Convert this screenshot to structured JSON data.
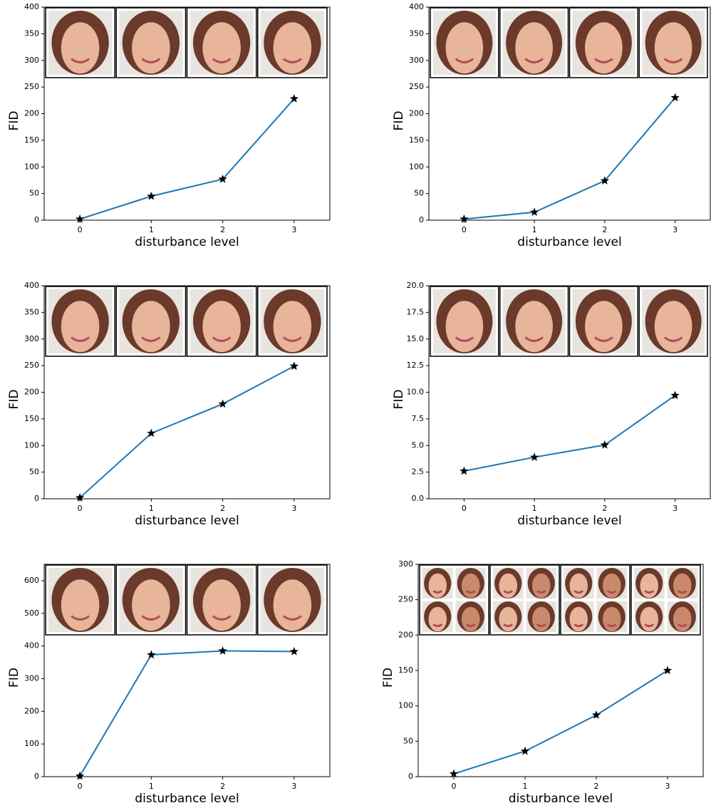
{
  "chart_data": [
    {
      "type": "line",
      "x": [
        0,
        1,
        2,
        3
      ],
      "values": [
        2,
        45,
        77,
        228
      ],
      "color": "#1f77b4",
      "marker": "star",
      "xlim": [
        -0.5,
        3.5
      ],
      "xticks": [
        0,
        1,
        2,
        3
      ],
      "ylim": [
        0,
        400
      ],
      "yticks": [
        0,
        50,
        100,
        150,
        200,
        250,
        300,
        350,
        400
      ],
      "xlabel": "disturbance level",
      "ylabel": "FID"
    },
    {
      "type": "line",
      "x": [
        0,
        1,
        2,
        3
      ],
      "values": [
        2,
        15,
        74,
        230
      ],
      "color": "#1f77b4",
      "marker": "star",
      "xlim": [
        -0.5,
        3.5
      ],
      "xticks": [
        0,
        1,
        2,
        3
      ],
      "ylim": [
        0,
        400
      ],
      "yticks": [
        0,
        50,
        100,
        150,
        200,
        250,
        300,
        350,
        400
      ],
      "xlabel": "disturbance level",
      "ylabel": "FID"
    },
    {
      "type": "line",
      "x": [
        0,
        1,
        2,
        3
      ],
      "values": [
        2,
        123,
        178,
        249
      ],
      "color": "#1f77b4",
      "marker": "star",
      "xlim": [
        -0.5,
        3.5
      ],
      "xticks": [
        0,
        1,
        2,
        3
      ],
      "ylim": [
        0,
        400
      ],
      "yticks": [
        0,
        50,
        100,
        150,
        200,
        250,
        300,
        350,
        400
      ],
      "xlabel": "disturbance level",
      "ylabel": "FID"
    },
    {
      "type": "line",
      "x": [
        0,
        1,
        2,
        3
      ],
      "values": [
        2.6,
        3.9,
        5.05,
        9.7
      ],
      "color": "#1f77b4",
      "marker": "star",
      "xlim": [
        -0.5,
        3.5
      ],
      "xticks": [
        0,
        1,
        2,
        3
      ],
      "ylim": [
        0,
        20
      ],
      "yticks": [
        {
          "value": 0,
          "label": "0.0"
        },
        2.5,
        {
          "value": 5,
          "label": "5.0"
        },
        7.5,
        {
          "value": 10,
          "label": "10.0"
        },
        12.5,
        {
          "value": 15,
          "label": "15.0"
        },
        17.5,
        {
          "value": 20,
          "label": "20.0"
        }
      ],
      "xlabel": "disturbance level",
      "ylabel": "FID"
    },
    {
      "type": "line",
      "x": [
        0,
        1,
        2,
        3
      ],
      "values": [
        2,
        373,
        385,
        383
      ],
      "color": "#1f77b4",
      "marker": "star",
      "xlim": [
        -0.5,
        3.5
      ],
      "xticks": [
        0,
        1,
        2,
        3
      ],
      "ylim": [
        0,
        650
      ],
      "yticks": [
        0,
        100,
        200,
        300,
        400,
        500,
        600
      ],
      "xlabel": "disturbance level",
      "ylabel": "FID"
    },
    {
      "type": "line",
      "x": [
        0,
        1,
        2,
        3
      ],
      "values": [
        4,
        36,
        87,
        150
      ],
      "color": "#1f77b4",
      "marker": "star",
      "xlim": [
        -0.5,
        3.5
      ],
      "xticks": [
        0,
        1,
        2,
        3
      ],
      "ylim": [
        0,
        300
      ],
      "yticks": [
        0,
        50,
        100,
        150,
        200,
        250,
        300
      ],
      "xlabel": "disturbance level",
      "ylabel": "FID"
    }
  ]
}
